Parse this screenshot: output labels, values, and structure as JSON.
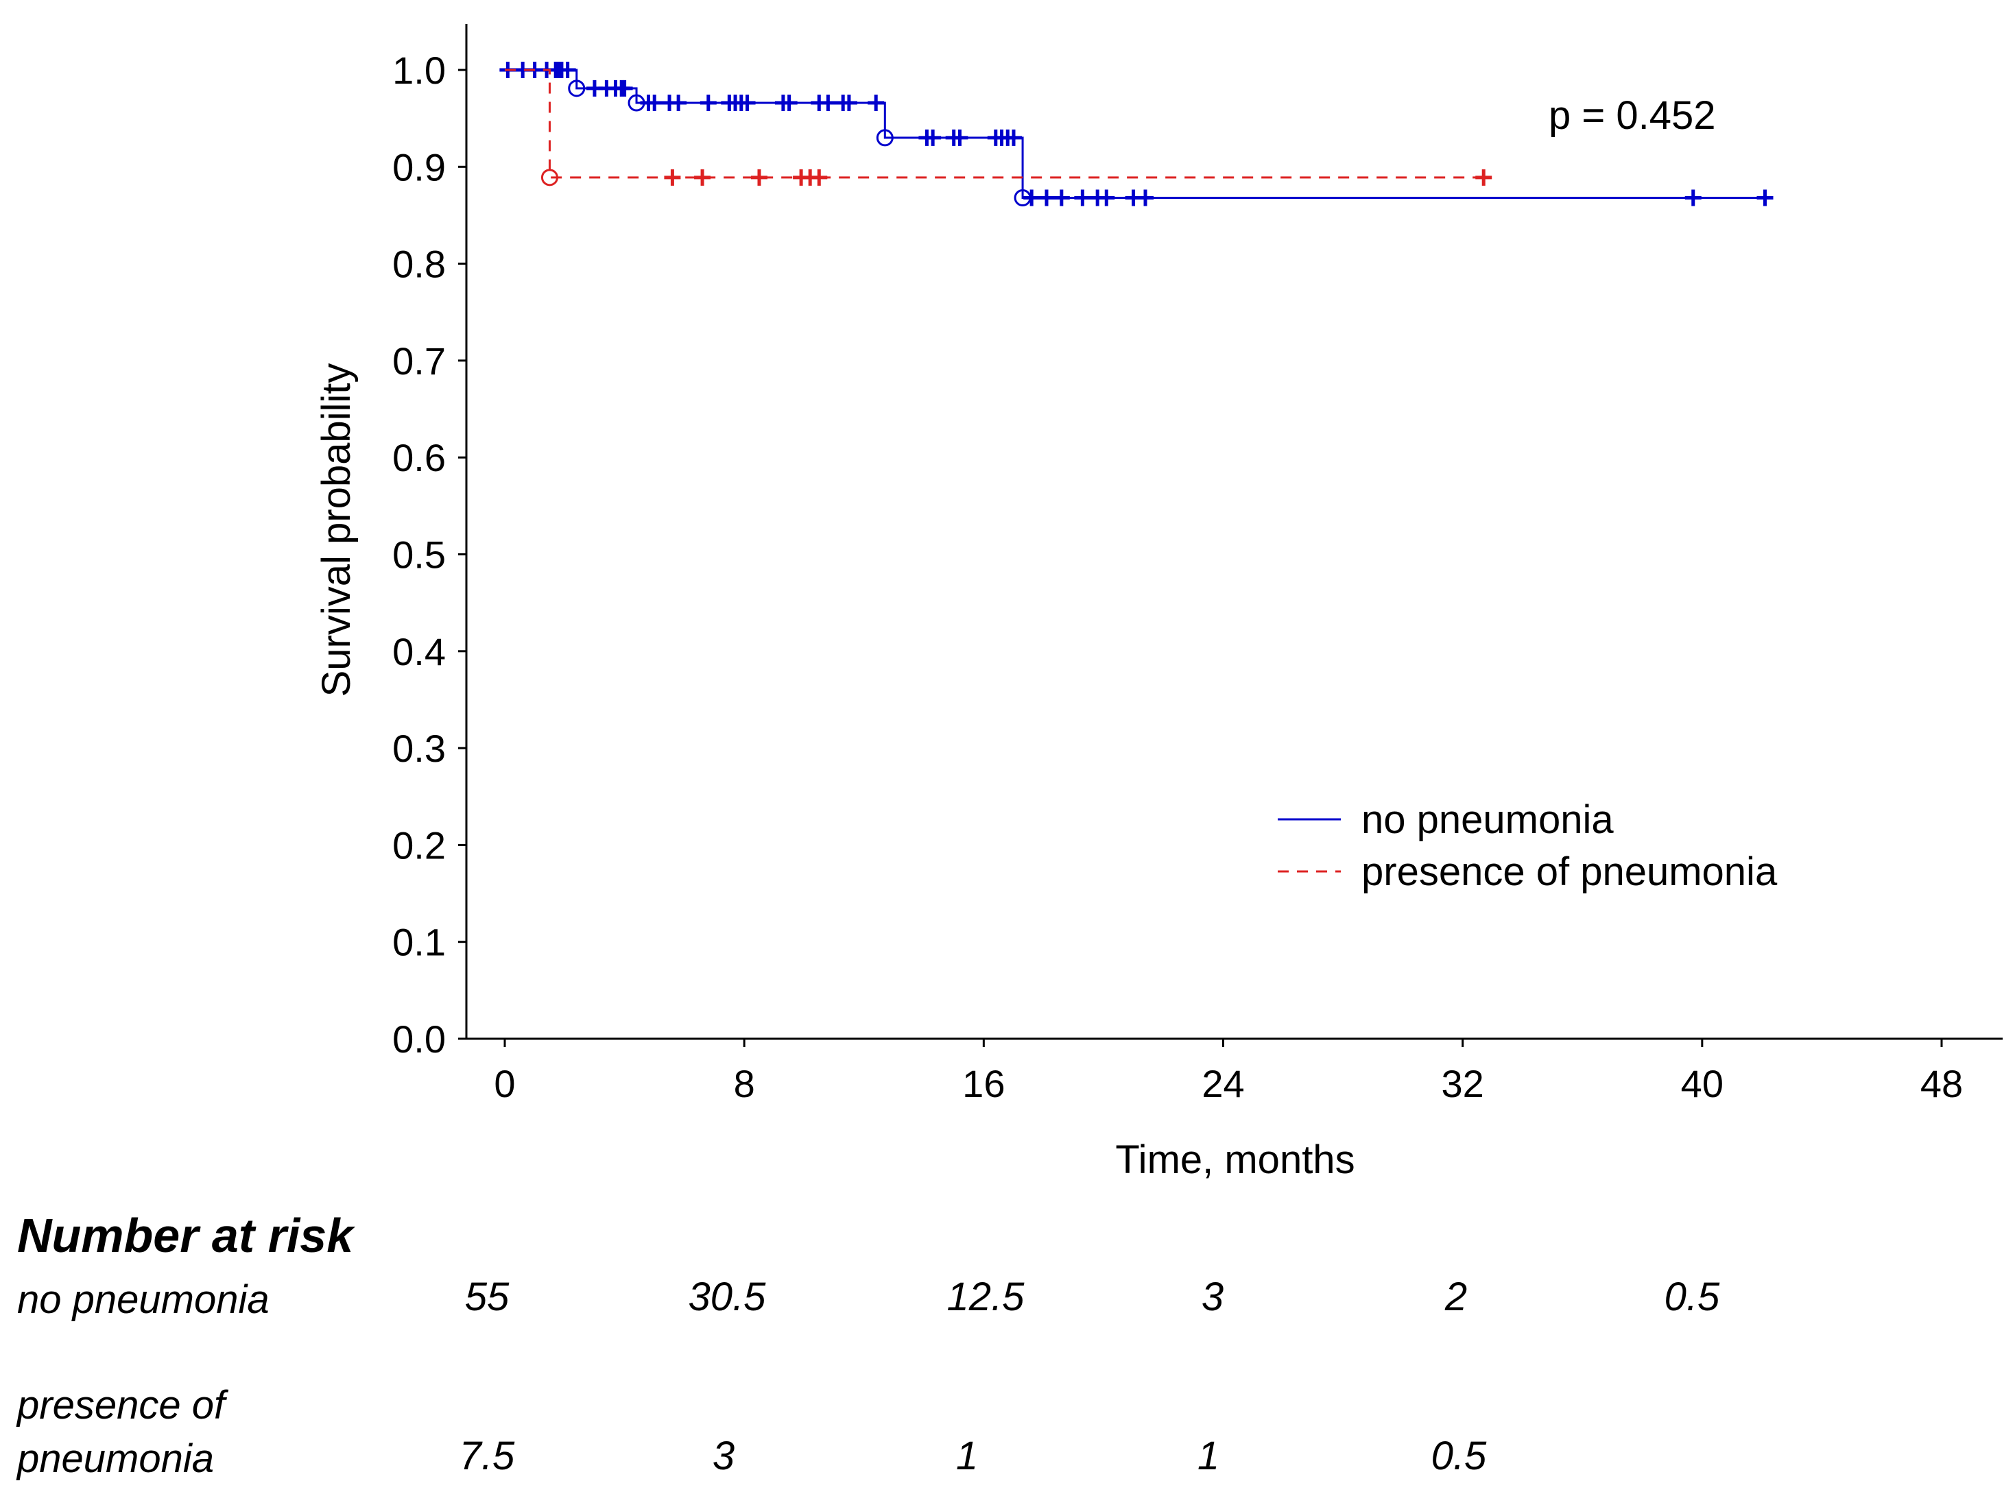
{
  "chart_data": {
    "type": "line",
    "subtype": "kaplan-meier",
    "xlabel": "Time, months",
    "ylabel": "Survival probability",
    "xlim": [
      -2,
      50
    ],
    "ylim": [
      0,
      1.05
    ],
    "x_ticks": [
      0,
      8,
      16,
      24,
      32,
      40,
      48
    ],
    "y_ticks": [
      "0.0",
      "0.1",
      "0.2",
      "0.3",
      "0.4",
      "0.5",
      "0.6",
      "0.7",
      "0.8",
      "0.9",
      "1.0"
    ],
    "annotation": "p = 0.452",
    "legend_position": "lower-right",
    "series": [
      {
        "name": "no pneumonia",
        "color": "#0000cc",
        "dash": "solid",
        "steps": [
          [
            0,
            1.0
          ],
          [
            2.4,
            0.981
          ],
          [
            4.4,
            0.966
          ],
          [
            12.7,
            0.93
          ],
          [
            17.3,
            0.868
          ],
          [
            42.2,
            0.868
          ]
        ],
        "events": [
          [
            2.4,
            0.981
          ],
          [
            4.4,
            0.966
          ],
          [
            12.7,
            0.93
          ],
          [
            17.3,
            0.868
          ]
        ],
        "censored": [
          [
            0.1,
            1.0
          ],
          [
            0.6,
            1.0
          ],
          [
            1.0,
            1.0
          ],
          [
            1.4,
            1.0
          ],
          [
            1.7,
            1.0
          ],
          [
            1.8,
            1.0
          ],
          [
            1.9,
            1.0
          ],
          [
            2.1,
            1.0
          ],
          [
            3.0,
            0.981
          ],
          [
            3.4,
            0.981
          ],
          [
            3.7,
            0.981
          ],
          [
            3.9,
            0.981
          ],
          [
            4.0,
            0.981
          ],
          [
            4.8,
            0.966
          ],
          [
            5.0,
            0.966
          ],
          [
            5.5,
            0.966
          ],
          [
            5.8,
            0.966
          ],
          [
            6.8,
            0.966
          ],
          [
            7.5,
            0.966
          ],
          [
            7.7,
            0.966
          ],
          [
            7.9,
            0.966
          ],
          [
            8.1,
            0.966
          ],
          [
            9.3,
            0.966
          ],
          [
            9.5,
            0.966
          ],
          [
            10.5,
            0.966
          ],
          [
            10.8,
            0.966
          ],
          [
            11.3,
            0.966
          ],
          [
            11.5,
            0.966
          ],
          [
            12.4,
            0.966
          ],
          [
            14.1,
            0.93
          ],
          [
            14.3,
            0.93
          ],
          [
            15.0,
            0.93
          ],
          [
            15.2,
            0.93
          ],
          [
            16.4,
            0.93
          ],
          [
            16.6,
            0.93
          ],
          [
            16.8,
            0.93
          ],
          [
            17.0,
            0.93
          ],
          [
            17.6,
            0.868
          ],
          [
            18.1,
            0.868
          ],
          [
            18.6,
            0.868
          ],
          [
            19.3,
            0.868
          ],
          [
            19.8,
            0.868
          ],
          [
            20.1,
            0.868
          ],
          [
            21.0,
            0.868
          ],
          [
            21.4,
            0.868
          ],
          [
            39.7,
            0.868
          ],
          [
            42.1,
            0.868
          ]
        ]
      },
      {
        "name": "presence of pneumonia",
        "color": "#dd2222",
        "dash": "dashed",
        "steps": [
          [
            0,
            1.0
          ],
          [
            1.5,
            0.889
          ],
          [
            32.7,
            0.889
          ]
        ],
        "events": [
          [
            1.5,
            0.889
          ]
        ],
        "censored": [
          [
            5.6,
            0.889
          ],
          [
            6.6,
            0.889
          ],
          [
            8.5,
            0.889
          ],
          [
            9.9,
            0.889
          ],
          [
            10.2,
            0.889
          ],
          [
            10.5,
            0.889
          ],
          [
            32.7,
            0.889
          ]
        ]
      }
    ]
  },
  "risk_table": {
    "title": "Number at risk",
    "rows": [
      {
        "label": "no pneumonia",
        "values": [
          "55",
          "30.5",
          "12.5",
          "3",
          "2",
          "0.5"
        ]
      },
      {
        "label_line1": "presence of",
        "label_line2": "pneumonia",
        "values": [
          "7.5",
          "3",
          "1",
          "1",
          "0.5"
        ]
      }
    ]
  }
}
